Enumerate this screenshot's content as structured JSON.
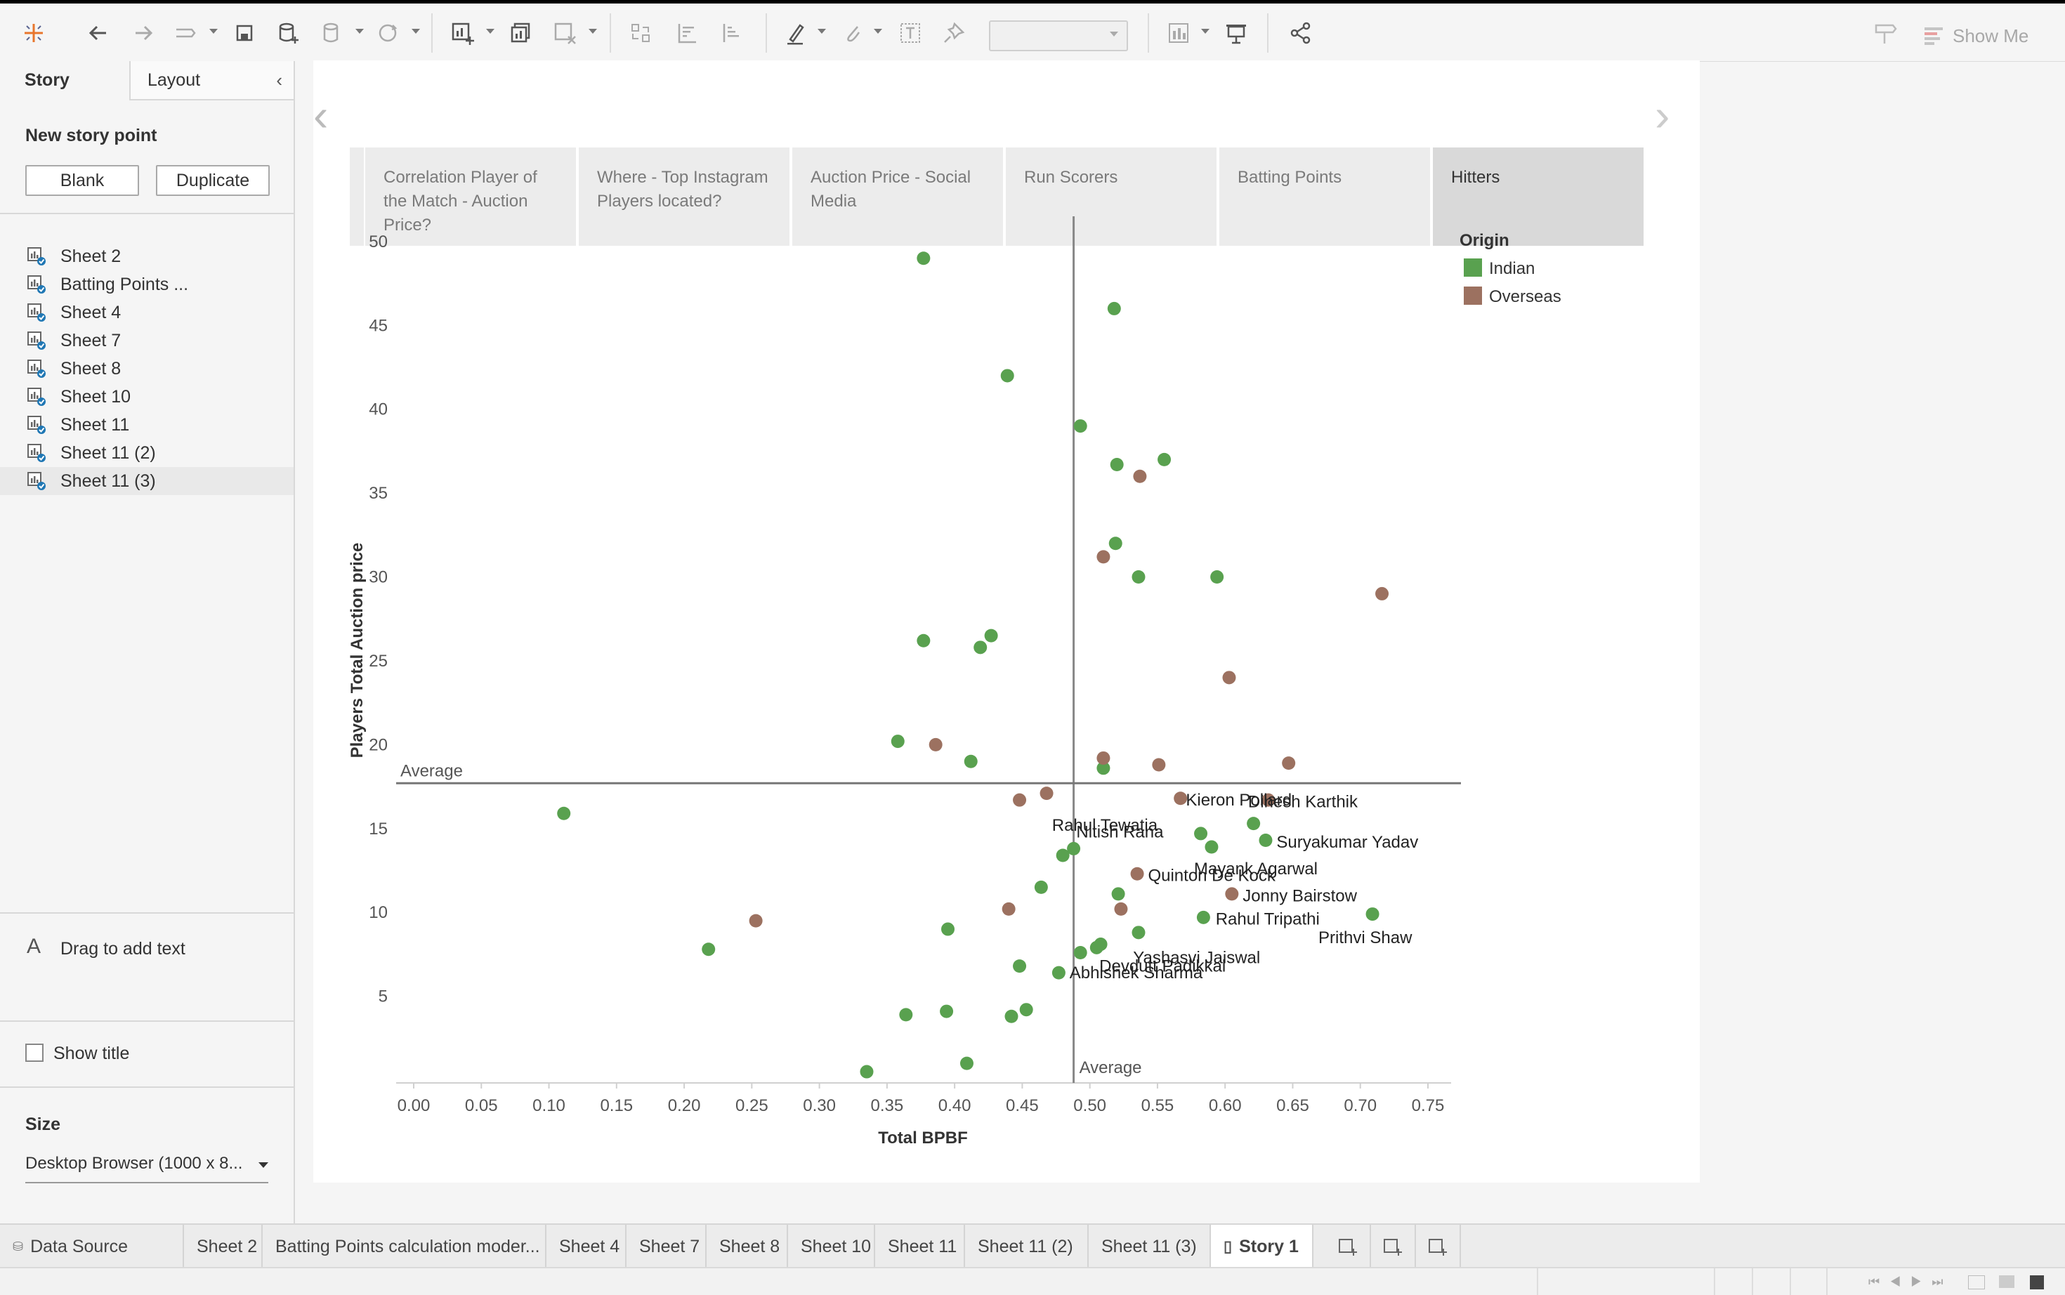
{
  "sidebar": {
    "tabs": [
      "Story",
      "Layout"
    ],
    "new_story_point": "New story point",
    "blank_label": "Blank",
    "duplicate_label": "Duplicate",
    "sheets": [
      "Sheet 2",
      "Batting Points ...",
      "Sheet 4",
      "Sheet 7",
      "Sheet 8",
      "Sheet 10",
      "Sheet 11",
      "Sheet 11 (2)",
      "Sheet 11 (3)"
    ],
    "drag_text": "Drag to add text",
    "show_title": "Show title",
    "size_label": "Size",
    "size_value": "Desktop Browser (1000 x 8..."
  },
  "toolbar": {
    "show_me": "Show Me"
  },
  "story_points": [
    "Correlation  Player of the Match - Auction Price?",
    "Where - Top Instagram Players located?",
    "Auction Price - Social Media",
    "Run Scorers",
    "Batting Points",
    "Hitters"
  ],
  "bottom_tabs": [
    "Data Source",
    "Sheet 2",
    "Batting Points calculation moder...",
    "Sheet 4",
    "Sheet 7",
    "Sheet 8",
    "Sheet 10",
    "Sheet 11",
    "Sheet 11 (2)",
    "Sheet 11 (3)",
    "Story 1"
  ],
  "colors": {
    "indian": "#59a14f",
    "overseas": "#9c7160",
    "accent": "#e8762d"
  },
  "chart_data": {
    "type": "scatter",
    "xlabel": "Total BPBF",
    "ylabel": "Players Total Auction price",
    "xlim": [
      0.0,
      0.75
    ],
    "ylim": [
      0,
      51
    ],
    "xticks": [
      "0.00",
      "0.05",
      "0.10",
      "0.15",
      "0.20",
      "0.25",
      "0.30",
      "0.35",
      "0.40",
      "0.45",
      "0.50",
      "0.55",
      "0.60",
      "0.65",
      "0.70",
      "0.75"
    ],
    "yticks": [
      "5",
      "10",
      "15",
      "20",
      "25",
      "30",
      "35",
      "40",
      "45",
      "50"
    ],
    "reference_lines": {
      "x_average": 0.488,
      "y_average": 17.7,
      "label": "Average"
    },
    "legend": {
      "title": "Origin",
      "position": "top-right",
      "entries": [
        "Indian",
        "Overseas"
      ]
    },
    "series": [
      {
        "name": "Indian",
        "color": "#59a14f",
        "points": [
          {
            "x": 0.377,
            "y": 49.0
          },
          {
            "x": 0.518,
            "y": 46.0
          },
          {
            "x": 0.439,
            "y": 42.0
          },
          {
            "x": 0.493,
            "y": 39.0
          },
          {
            "x": 0.52,
            "y": 36.7
          },
          {
            "x": 0.555,
            "y": 37.0
          },
          {
            "x": 0.519,
            "y": 32.0
          },
          {
            "x": 0.536,
            "y": 30.0
          },
          {
            "x": 0.594,
            "y": 30.0
          },
          {
            "x": 0.377,
            "y": 26.2
          },
          {
            "x": 0.427,
            "y": 26.5
          },
          {
            "x": 0.419,
            "y": 25.8
          },
          {
            "x": 0.358,
            "y": 20.2
          },
          {
            "x": 0.412,
            "y": 19.0
          },
          {
            "x": 0.51,
            "y": 18.6
          },
          {
            "x": 0.111,
            "y": 15.9
          },
          {
            "x": 0.621,
            "y": 15.3
          },
          {
            "x": 0.582,
            "y": 14.7
          },
          {
            "x": 0.59,
            "y": 13.9
          },
          {
            "x": 0.63,
            "y": 14.3,
            "label": "Suryakumar Yadav"
          },
          {
            "x": 0.488,
            "y": 13.8,
            "label": "Rahul Tewatia"
          },
          {
            "x": 0.48,
            "y": 13.4,
            "label": "Nitish Rana"
          },
          {
            "x": 0.464,
            "y": 11.5
          },
          {
            "x": 0.521,
            "y": 11.1
          },
          {
            "x": 0.584,
            "y": 9.7,
            "label": "Rahul Tripathi"
          },
          {
            "x": 0.709,
            "y": 9.9,
            "label": "Prithvi Shaw"
          },
          {
            "x": 0.536,
            "y": 8.8
          },
          {
            "x": 0.395,
            "y": 9.0
          },
          {
            "x": 0.218,
            "y": 7.8
          },
          {
            "x": 0.493,
            "y": 7.6,
            "label": "Yashasvi Jaiswal"
          },
          {
            "x": 0.505,
            "y": 7.9,
            "label": "Devdutt Padikkal"
          },
          {
            "x": 0.508,
            "y": 8.1
          },
          {
            "x": 0.448,
            "y": 6.8
          },
          {
            "x": 0.477,
            "y": 6.4,
            "label": "Abhishek Sharma"
          },
          {
            "x": 0.364,
            "y": 3.9
          },
          {
            "x": 0.394,
            "y": 4.1
          },
          {
            "x": 0.442,
            "y": 3.8
          },
          {
            "x": 0.453,
            "y": 4.2
          },
          {
            "x": 0.409,
            "y": 1.0
          },
          {
            "x": 0.335,
            "y": 0.5
          }
        ]
      },
      {
        "name": "Overseas",
        "color": "#9c7160",
        "points": [
          {
            "x": 0.537,
            "y": 36.0
          },
          {
            "x": 0.51,
            "y": 31.2
          },
          {
            "x": 0.716,
            "y": 29.0
          },
          {
            "x": 0.603,
            "y": 24.0
          },
          {
            "x": 0.386,
            "y": 20.0
          },
          {
            "x": 0.51,
            "y": 19.2
          },
          {
            "x": 0.551,
            "y": 18.8
          },
          {
            "x": 0.647,
            "y": 18.9
          },
          {
            "x": 0.468,
            "y": 17.1
          },
          {
            "x": 0.448,
            "y": 16.7
          },
          {
            "x": 0.567,
            "y": 16.8,
            "label": "Kieron Pollard"
          },
          {
            "x": 0.632,
            "y": 16.7,
            "label": "Dinesh Karthik"
          },
          {
            "x": 0.535,
            "y": 12.3,
            "label": "Quinton De Kock"
          },
          {
            "x": 0.605,
            "y": 11.1,
            "label": "Jonny Bairstow"
          },
          {
            "x": 0.44,
            "y": 10.2
          },
          {
            "x": 0.523,
            "y": 10.2
          },
          {
            "x": 0.253,
            "y": 9.5
          }
        ]
      }
    ],
    "labels": [
      {
        "text": "Kieron Pollard",
        "x": 0.571,
        "y": 16.7
      },
      {
        "text": "Dinesh Karthik",
        "x": 0.617,
        "y": 16.6
      },
      {
        "text": "Rahul Tewatia",
        "x": 0.472,
        "y": 15.2
      },
      {
        "text": "Nitish Rana",
        "x": 0.49,
        "y": 14.8
      },
      {
        "text": "Suryakumar Yadav",
        "x": 0.638,
        "y": 14.2
      },
      {
        "text": "Mayank Agarwal",
        "x": 0.577,
        "y": 12.6
      },
      {
        "text": "Quinton De Kock",
        "x": 0.543,
        "y": 12.2
      },
      {
        "text": "Jonny Bairstow",
        "x": 0.613,
        "y": 11.0
      },
      {
        "text": "Rahul Tripathi",
        "x": 0.593,
        "y": 9.6
      },
      {
        "text": "Prithvi Shaw",
        "x": 0.669,
        "y": 8.5
      },
      {
        "text": "Yashasvi Jaiswal",
        "x": 0.532,
        "y": 7.3
      },
      {
        "text": "Devdutt Padikkal",
        "x": 0.507,
        "y": 6.8
      },
      {
        "text": "Abhishek Sharma",
        "x": 0.485,
        "y": 6.4
      }
    ]
  }
}
